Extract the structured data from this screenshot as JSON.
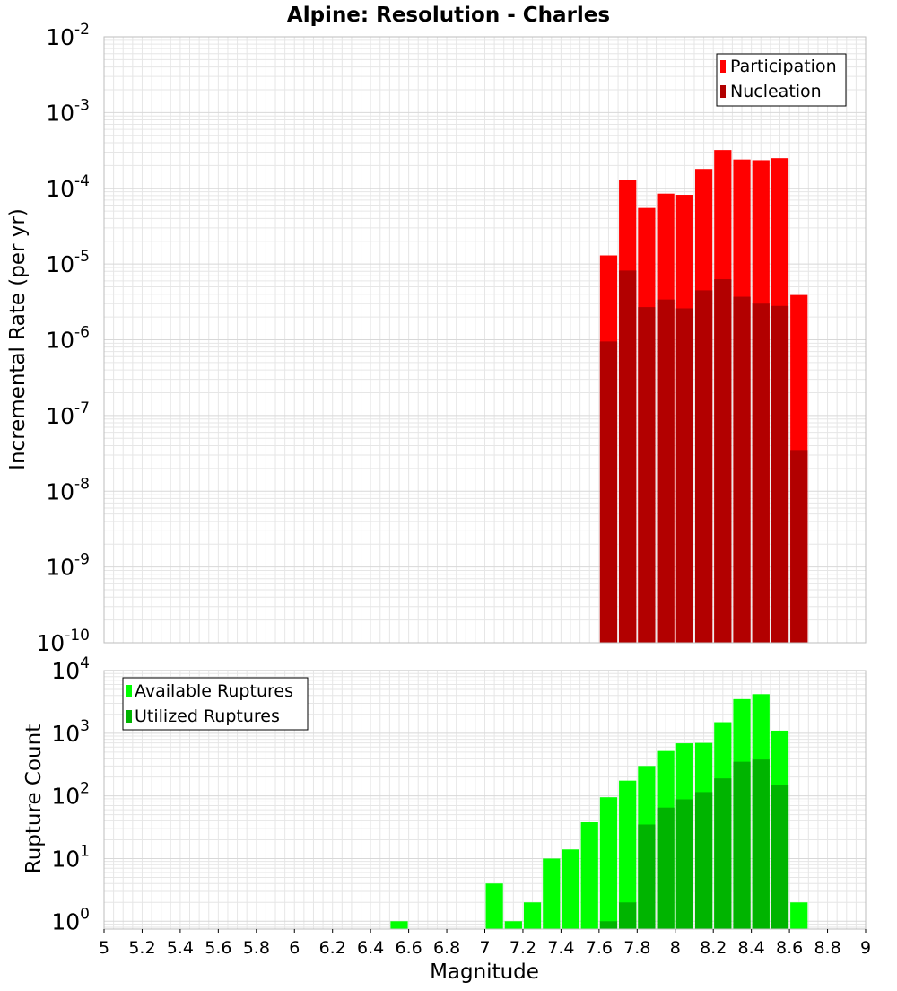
{
  "title": "Alpine: Resolution - Charles",
  "colors": {
    "participation": "#ff0000",
    "nucleation": "#b20000",
    "available": "#00ff00",
    "utilized": "#00b400",
    "grid": "#e6e6e6",
    "frame": "#bdbdbd"
  },
  "chart_data": [
    {
      "type": "bar",
      "ylabel": "Incremental Rate (per yr)",
      "xlabel": "",
      "yscale": "log",
      "ylim": [
        1e-10,
        0.01
      ],
      "xlim": [
        5,
        9
      ],
      "bar_width": 0.1,
      "grid": true,
      "legend_placement": "top-right",
      "y_ticks": [
        {
          "base": "10",
          "exp": "-10",
          "value": 1e-10
        },
        {
          "base": "10",
          "exp": "-9",
          "value": 1e-09
        },
        {
          "base": "10",
          "exp": "-8",
          "value": 1e-08
        },
        {
          "base": "10",
          "exp": "-7",
          "value": 1e-07
        },
        {
          "base": "10",
          "exp": "-6",
          "value": 1e-06
        },
        {
          "base": "10",
          "exp": "-5",
          "value": 1e-05
        },
        {
          "base": "10",
          "exp": "-4",
          "value": 0.0001
        },
        {
          "base": "10",
          "exp": "-3",
          "value": 0.001
        },
        {
          "base": "10",
          "exp": "-2",
          "value": 0.01
        }
      ],
      "x": [
        7.65,
        7.75,
        7.85,
        7.95,
        8.05,
        8.15,
        8.25,
        8.35,
        8.45,
        8.55,
        8.65
      ],
      "series": [
        {
          "name": "Participation",
          "color_key": "participation",
          "values": [
            1.3e-05,
            0.00013,
            5.5e-05,
            8.5e-05,
            8.2e-05,
            0.00018,
            0.00032,
            0.00024,
            0.000235,
            0.00025,
            3.9e-06
          ]
        },
        {
          "name": "Nucleation",
          "color_key": "nucleation",
          "values": [
            9.5e-07,
            8.2e-06,
            2.7e-06,
            3.4e-06,
            2.6e-06,
            4.5e-06,
            6.3e-06,
            3.7e-06,
            3e-06,
            2.8e-06,
            3.5e-08
          ]
        }
      ]
    },
    {
      "type": "bar",
      "ylabel": "Rupture Count",
      "xlabel": "Magnitude",
      "yscale": "log",
      "ylim": [
        0.75,
        10000
      ],
      "xlim": [
        5,
        9
      ],
      "bar_width": 0.1,
      "grid": true,
      "legend_placement": "top-left",
      "y_ticks": [
        {
          "base": "10",
          "exp": "0",
          "value": 1
        },
        {
          "base": "10",
          "exp": "1",
          "value": 10
        },
        {
          "base": "10",
          "exp": "2",
          "value": 100
        },
        {
          "base": "10",
          "exp": "3",
          "value": 1000
        },
        {
          "base": "10",
          "exp": "4",
          "value": 10000
        }
      ],
      "x_tick_labels": [
        "5",
        "5.2",
        "5.4",
        "5.6",
        "5.8",
        "6",
        "6.2",
        "6.4",
        "6.6",
        "6.8",
        "7",
        "7.2",
        "7.4",
        "7.6",
        "7.8",
        "8",
        "8.2",
        "8.4",
        "8.6",
        "8.8",
        "9"
      ],
      "series": [
        {
          "name": "Available Ruptures",
          "color_key": "available",
          "x": [
            6.55,
            7.05,
            7.15,
            7.25,
            7.35,
            7.45,
            7.55,
            7.65,
            7.75,
            7.85,
            7.95,
            8.05,
            8.15,
            8.25,
            8.35,
            8.45,
            8.55,
            8.65
          ],
          "values": [
            1,
            4,
            1,
            2,
            10,
            14,
            38,
            95,
            175,
            300,
            520,
            690,
            700,
            1500,
            3500,
            4200,
            1100,
            2
          ]
        },
        {
          "name": "Utilized Ruptures",
          "color_key": "utilized",
          "x": [
            7.65,
            7.75,
            7.85,
            7.95,
            8.05,
            8.15,
            8.25,
            8.35,
            8.45,
            8.55
          ],
          "values": [
            1,
            2,
            35,
            65,
            88,
            115,
            190,
            350,
            380,
            150
          ]
        }
      ]
    }
  ]
}
